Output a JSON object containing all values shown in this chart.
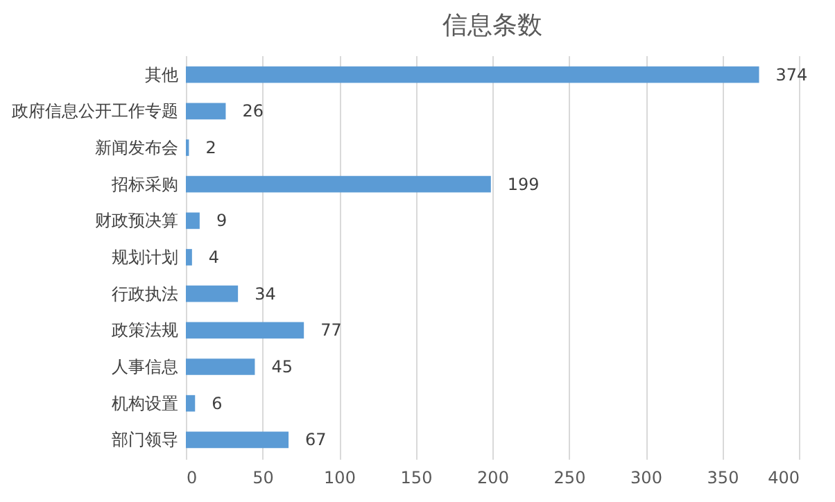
{
  "chart_data": {
    "type": "bar",
    "title": "信息条数",
    "orientation": "horizontal",
    "categories": [
      "其他",
      "政府信息公开工作专题",
      "新闻发布会",
      "招标采购",
      "财政预决算",
      "规划计划",
      "行政执法",
      "政策法规",
      "人事信息",
      "机构设置",
      "部门领导"
    ],
    "values": [
      374,
      26,
      2,
      199,
      9,
      4,
      34,
      77,
      45,
      6,
      67
    ],
    "color": "#5b9bd5",
    "xlim": [
      0,
      400
    ],
    "xticks": [
      0,
      50,
      100,
      150,
      200,
      250,
      300,
      350,
      400
    ],
    "grid": "x",
    "data_labels": true
  }
}
